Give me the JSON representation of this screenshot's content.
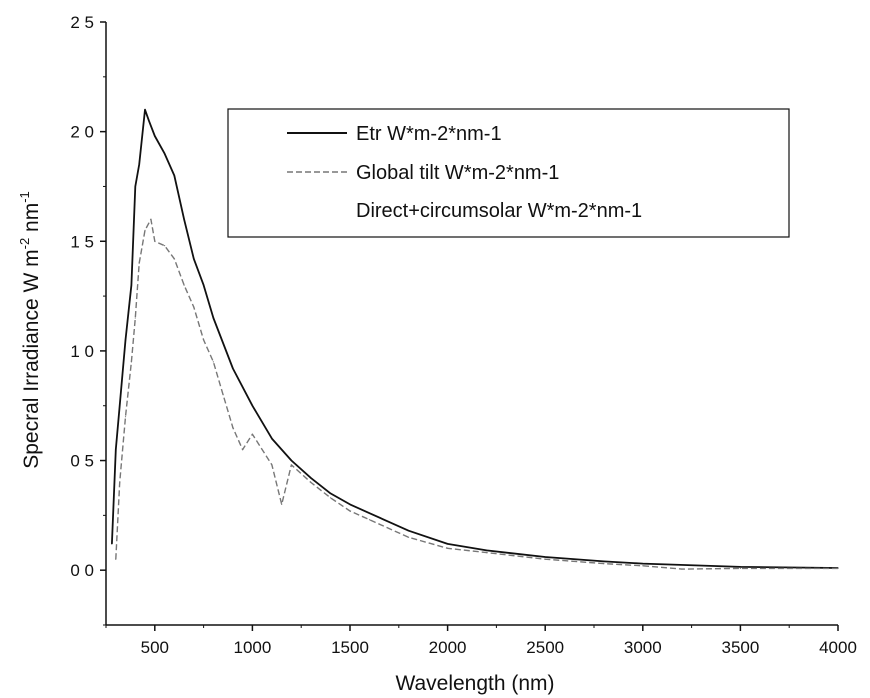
{
  "chart_data": {
    "type": "line",
    "xlabel": "Wavelength (nm)",
    "ylabel_main": "Specral Irradiance W m",
    "ylabel_sup1": "-2",
    "ylabel_mid": " nm",
    "ylabel_sup2": "-1",
    "xlim": [
      250,
      4000
    ],
    "ylim": [
      -0.25,
      2.5
    ],
    "x_ticks": [
      500,
      1000,
      1500,
      2000,
      2500,
      3000,
      3500,
      4000
    ],
    "x_tick_labels": [
      "500",
      "1000",
      "1500",
      "2000",
      "2500",
      "3000",
      "3500",
      "4000"
    ],
    "y_ticks": [
      0.0,
      0.5,
      1.0,
      1.5,
      2.0,
      2.5
    ],
    "y_tick_labels": [
      "0 0",
      "0 5",
      "1 0",
      "1 5",
      "2 0",
      "2 5"
    ],
    "legend_position": "top-right",
    "series": [
      {
        "name": "Etr W*m-2*nm-1",
        "color": "#111111",
        "style": "solid",
        "x": [
          280,
          300,
          320,
          350,
          380,
          400,
          420,
          450,
          470,
          500,
          550,
          600,
          650,
          700,
          750,
          800,
          900,
          1000,
          1100,
          1200,
          1300,
          1400,
          1500,
          1600,
          1700,
          1800,
          2000,
          2200,
          2500,
          2800,
          3000,
          3500,
          4000
        ],
        "y": [
          0.12,
          0.55,
          0.75,
          1.05,
          1.3,
          1.75,
          1.85,
          2.1,
          2.05,
          1.98,
          1.9,
          1.8,
          1.6,
          1.42,
          1.3,
          1.15,
          0.92,
          0.75,
          0.6,
          0.5,
          0.42,
          0.35,
          0.3,
          0.26,
          0.22,
          0.18,
          0.12,
          0.09,
          0.06,
          0.04,
          0.03,
          0.015,
          0.01
        ]
      },
      {
        "name": "Global tilt  W*m-2*nm-1",
        "color": "#777777",
        "style": "dashed",
        "x": [
          300,
          320,
          350,
          380,
          400,
          420,
          450,
          480,
          500,
          550,
          600,
          650,
          700,
          750,
          800,
          850,
          900,
          950,
          1000,
          1100,
          1150,
          1200,
          1300,
          1400,
          1500,
          1600,
          1700,
          1800,
          2000,
          2200,
          2500,
          2800,
          3000,
          3200,
          3500,
          4000
        ],
        "y": [
          0.05,
          0.4,
          0.7,
          0.95,
          1.15,
          1.4,
          1.55,
          1.6,
          1.5,
          1.48,
          1.42,
          1.3,
          1.2,
          1.05,
          0.95,
          0.8,
          0.65,
          0.55,
          0.62,
          0.48,
          0.3,
          0.48,
          0.4,
          0.33,
          0.27,
          0.23,
          0.19,
          0.15,
          0.1,
          0.08,
          0.05,
          0.03,
          0.02,
          0.005,
          0.008,
          0.008
        ]
      },
      {
        "name": "Direct+circumsolar W*m-2*nm-1",
        "color": "#aaaaaa",
        "style": "none",
        "x": [],
        "y": []
      }
    ]
  }
}
